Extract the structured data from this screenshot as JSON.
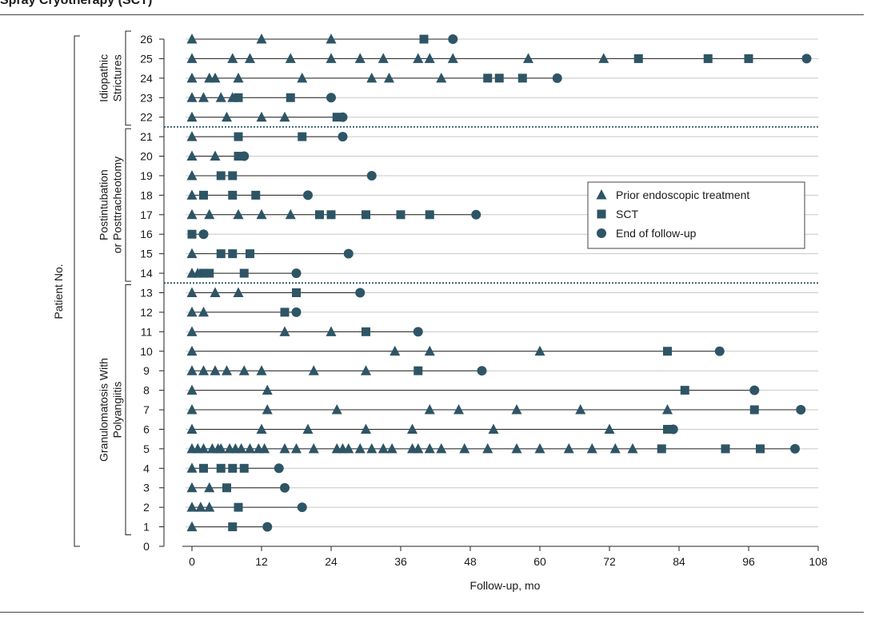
{
  "header": {
    "title": "Spray Cryotherapy (SCT)"
  },
  "chart_data": {
    "type": "scatter",
    "xlabel": "Follow-up, mo",
    "ylabel": "Patient No.",
    "xlim": [
      0,
      108
    ],
    "ylim": [
      0,
      26
    ],
    "xticks": [
      0,
      12,
      24,
      36,
      48,
      60,
      72,
      84,
      96,
      108
    ],
    "yticks": [
      0,
      1,
      2,
      3,
      4,
      5,
      6,
      7,
      8,
      9,
      10,
      11,
      12,
      13,
      14,
      15,
      16,
      17,
      18,
      19,
      20,
      21,
      22,
      23,
      24,
      25,
      26
    ],
    "grid": "horizontal",
    "legend_position": "right",
    "colors": {
      "marker": "#2e5566",
      "line": "#222222",
      "grid": "#c8c8c8",
      "divider": "#2e5566"
    },
    "legend": [
      {
        "label": "Prior endoscopic treatment",
        "shape": "triangle"
      },
      {
        "label": "SCT",
        "shape": "square"
      },
      {
        "label": "End of follow-up",
        "shape": "circle"
      }
    ],
    "groups": [
      {
        "label": "Idiopathic Strictures",
        "patients": [
          22,
          26
        ]
      },
      {
        "label": "Postintubation or Posttracheotomy",
        "patients": [
          14,
          21
        ]
      },
      {
        "label": "Granulomatosis With Polyangiitis",
        "patients": [
          1,
          13
        ]
      }
    ],
    "patients": [
      {
        "id": 1,
        "prior": [
          0
        ],
        "sct": [
          7
        ],
        "end": 13
      },
      {
        "id": 2,
        "prior": [
          0,
          1.5,
          3
        ],
        "sct": [
          8
        ],
        "end": 19
      },
      {
        "id": 3,
        "prior": [
          0,
          3
        ],
        "sct": [
          6
        ],
        "end": 16
      },
      {
        "id": 4,
        "prior": [
          0
        ],
        "sct": [
          2,
          5,
          7,
          9
        ],
        "end": 15
      },
      {
        "id": 5,
        "prior": [
          0,
          1,
          2,
          3.5,
          4.5,
          5,
          6.5,
          7.5,
          8.5,
          10,
          11.5,
          12.5,
          16,
          18,
          21,
          25,
          26,
          27,
          29,
          31,
          33,
          34.5,
          38,
          39,
          41,
          43,
          47,
          51,
          56,
          60,
          65,
          69,
          73,
          76
        ],
        "sct": [
          81,
          92,
          98
        ],
        "end": 104
      },
      {
        "id": 6,
        "prior": [
          0,
          12,
          20,
          30,
          38,
          52,
          72
        ],
        "sct": [
          82
        ],
        "end": 83
      },
      {
        "id": 7,
        "prior": [
          0,
          13,
          25,
          41,
          46,
          56,
          67,
          82
        ],
        "sct": [
          97
        ],
        "end": 105
      },
      {
        "id": 8,
        "prior": [
          0,
          13
        ],
        "sct": [
          85
        ],
        "end": 97
      },
      {
        "id": 9,
        "prior": [
          0,
          2,
          4,
          6,
          9,
          12,
          21,
          30
        ],
        "sct": [
          39
        ],
        "end": 50
      },
      {
        "id": 10,
        "prior": [
          0,
          35,
          41,
          60
        ],
        "sct": [
          82
        ],
        "end": 91
      },
      {
        "id": 11,
        "prior": [
          0,
          16,
          24
        ],
        "sct": [
          30
        ],
        "end": 39
      },
      {
        "id": 12,
        "prior": [
          0,
          2
        ],
        "sct": [
          16
        ],
        "end": 18
      },
      {
        "id": 13,
        "prior": [
          0,
          4,
          8
        ],
        "sct": [
          18
        ],
        "end": 29
      },
      {
        "id": 14,
        "prior": [
          0,
          1
        ],
        "sct": [
          2,
          3,
          9
        ],
        "end": 18
      },
      {
        "id": 15,
        "prior": [
          0
        ],
        "sct": [
          5,
          7,
          10
        ],
        "end": 27
      },
      {
        "id": 16,
        "prior": [],
        "sct": [
          0
        ],
        "end": 2
      },
      {
        "id": 17,
        "prior": [
          0,
          3,
          8,
          12,
          17
        ],
        "sct": [
          22,
          24,
          30,
          36,
          41
        ],
        "end": 49
      },
      {
        "id": 18,
        "prior": [
          0
        ],
        "sct": [
          2,
          7,
          11
        ],
        "end": 20
      },
      {
        "id": 19,
        "prior": [
          0
        ],
        "sct": [
          5,
          7
        ],
        "end": 31
      },
      {
        "id": 20,
        "prior": [
          0,
          4
        ],
        "sct": [
          8
        ],
        "end": 9
      },
      {
        "id": 21,
        "prior": [
          0
        ],
        "sct": [
          8,
          19
        ],
        "end": 26
      },
      {
        "id": 22,
        "prior": [
          0,
          6,
          12,
          16
        ],
        "sct": [
          25
        ],
        "end": 26
      },
      {
        "id": 23,
        "prior": [
          0,
          2,
          5,
          7
        ],
        "sct": [
          8,
          17
        ],
        "end": 24
      },
      {
        "id": 24,
        "prior": [
          0,
          3,
          4,
          8,
          19,
          31,
          34,
          43
        ],
        "sct": [
          51,
          53,
          57
        ],
        "end": 63
      },
      {
        "id": 25,
        "prior": [
          0,
          7,
          10,
          17,
          24,
          29,
          33,
          39,
          41,
          45,
          58,
          71
        ],
        "sct": [
          77,
          89,
          96
        ],
        "end": 106
      },
      {
        "id": 26,
        "prior": [
          0,
          12,
          24
        ],
        "sct": [
          40
        ],
        "end": 45
      }
    ]
  }
}
